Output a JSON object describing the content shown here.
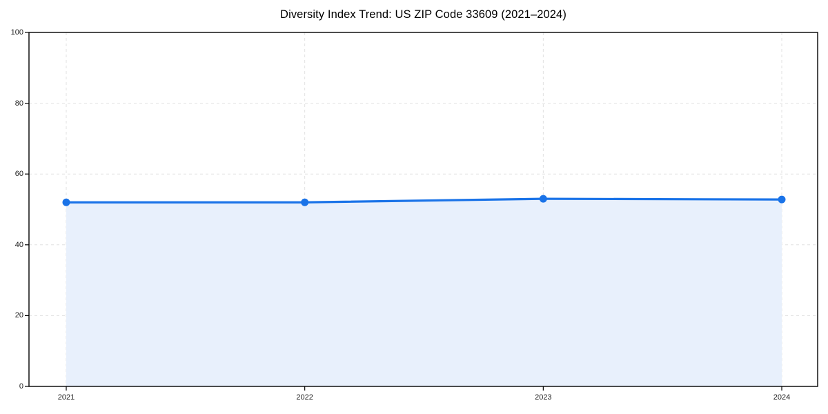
{
  "chart_data": {
    "type": "area",
    "title": "Diversity Index Trend: US ZIP Code 33609 (2021–2024)",
    "categories": [
      "2021",
      "2022",
      "2023",
      "2024"
    ],
    "x": [
      2021,
      2022,
      2023,
      2024
    ],
    "series": [
      {
        "name": "Diversity Index",
        "values": [
          52,
          52,
          53,
          52.8
        ]
      }
    ],
    "values": [
      52,
      52,
      53,
      52.8
    ],
    "xlabel": "",
    "ylabel": "",
    "ylim": [
      0,
      100
    ],
    "yticks": [
      0,
      20,
      40,
      60,
      80,
      100
    ],
    "grid": true,
    "grid_style": "dashed",
    "legend": false,
    "marker": "circle",
    "colors": {
      "line": "#1a73e8",
      "marker": "#1a73e8",
      "fill": "#e8f0fc",
      "grid": "#e0e0e0",
      "axis": "#000000",
      "background": "#ffffff",
      "text": "#1a1a1a"
    }
  }
}
